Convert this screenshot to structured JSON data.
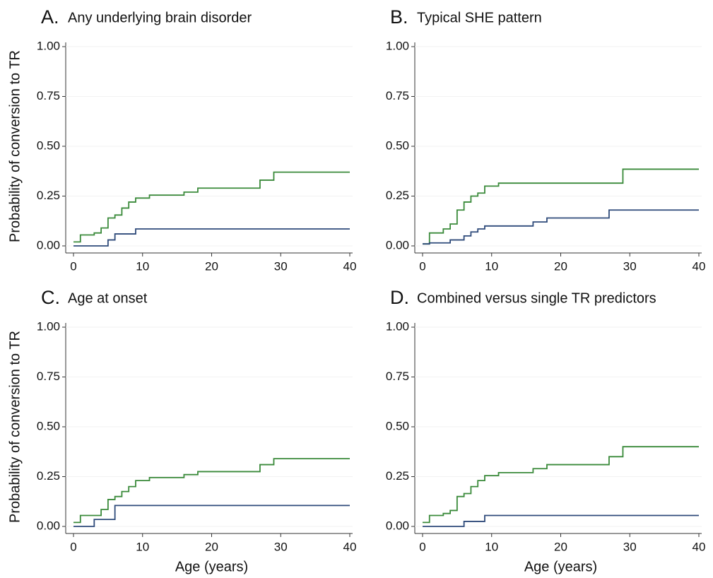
{
  "chart_data": [
    {
      "type": "step",
      "label": "A.",
      "title": "Any underlying brain disorder",
      "ylabel": "Probability of conversion to TR",
      "xlim": [
        0,
        40
      ],
      "ylim": [
        0,
        1
      ],
      "xticks": [
        0,
        10,
        20,
        30,
        40
      ],
      "yticks": [
        {
          "value": 0,
          "label": "0.00"
        },
        {
          "value": 0.25,
          "label": "0.25"
        },
        {
          "value": 0.5,
          "label": "0.50"
        },
        {
          "value": 0.75,
          "label": "0.75"
        },
        {
          "value": 1,
          "label": "1.00"
        }
      ],
      "series": [
        {
          "color": "#3a8a3a",
          "x": [
            0,
            1,
            3,
            4,
            5,
            6,
            7,
            8,
            9,
            11,
            16,
            18,
            27,
            29,
            40
          ],
          "values": [
            0.02,
            0.055,
            0.065,
            0.09,
            0.14,
            0.155,
            0.19,
            0.22,
            0.24,
            0.255,
            0.27,
            0.29,
            0.33,
            0.37,
            0.37
          ]
        },
        {
          "color": "#2e4a7a",
          "x": [
            0,
            5,
            6,
            9,
            40
          ],
          "values": [
            0,
            0.03,
            0.06,
            0.085,
            0.085
          ]
        }
      ]
    },
    {
      "type": "step",
      "label": "B.",
      "title": "Typical SHE pattern",
      "xlim": [
        0,
        40
      ],
      "ylim": [
        0,
        1
      ],
      "xticks": [
        0,
        10,
        20,
        30,
        40
      ],
      "yticks": [
        {
          "value": 0,
          "label": "0.00"
        },
        {
          "value": 0.25,
          "label": "0.25"
        },
        {
          "value": 0.5,
          "label": "0.50"
        },
        {
          "value": 0.75,
          "label": "0.75"
        },
        {
          "value": 1,
          "label": "1.00"
        }
      ],
      "series": [
        {
          "color": "#3a8a3a",
          "x": [
            0,
            1,
            3,
            4,
            5,
            6,
            7,
            8,
            9,
            11,
            29,
            40
          ],
          "values": [
            0.01,
            0.065,
            0.085,
            0.11,
            0.18,
            0.22,
            0.25,
            0.265,
            0.3,
            0.315,
            0.385,
            0.385
          ]
        },
        {
          "color": "#2e4a7a",
          "x": [
            0,
            1,
            4,
            6,
            7,
            8,
            9,
            16,
            18,
            27,
            40
          ],
          "values": [
            0.01,
            0.015,
            0.03,
            0.05,
            0.07,
            0.085,
            0.1,
            0.12,
            0.14,
            0.18,
            0.18
          ]
        }
      ]
    },
    {
      "type": "step",
      "label": "C.",
      "title": "Age at onset",
      "ylabel": "Probability of conversion to TR",
      "xlabel": "Age (years)",
      "xlim": [
        0,
        40
      ],
      "ylim": [
        0,
        1
      ],
      "xticks": [
        0,
        10,
        20,
        30,
        40
      ],
      "yticks": [
        {
          "value": 0,
          "label": "0.00"
        },
        {
          "value": 0.25,
          "label": "0.25"
        },
        {
          "value": 0.5,
          "label": "0.50"
        },
        {
          "value": 0.75,
          "label": "0.75"
        },
        {
          "value": 1,
          "label": "1.00"
        }
      ],
      "series": [
        {
          "color": "#3a8a3a",
          "x": [
            0,
            1,
            4,
            5,
            6,
            7,
            8,
            9,
            11,
            16,
            18,
            27,
            29,
            40
          ],
          "values": [
            0.02,
            0.055,
            0.085,
            0.135,
            0.15,
            0.175,
            0.2,
            0.23,
            0.245,
            0.26,
            0.275,
            0.31,
            0.34,
            0.34
          ]
        },
        {
          "color": "#2e4a7a",
          "x": [
            0,
            3,
            6,
            40
          ],
          "values": [
            0,
            0.035,
            0.105,
            0.105
          ]
        }
      ]
    },
    {
      "type": "step",
      "label": "D.",
      "title": "Combined versus single TR predictors",
      "xlabel": "Age (years)",
      "xlim": [
        0,
        40
      ],
      "ylim": [
        0,
        1
      ],
      "xticks": [
        0,
        10,
        20,
        30,
        40
      ],
      "yticks": [
        {
          "value": 0,
          "label": "0.00"
        },
        {
          "value": 0.25,
          "label": "0.25"
        },
        {
          "value": 0.5,
          "label": "0.50"
        },
        {
          "value": 0.75,
          "label": "0.75"
        },
        {
          "value": 1,
          "label": "1.00"
        }
      ],
      "series": [
        {
          "color": "#3a8a3a",
          "x": [
            0,
            1,
            3,
            4,
            5,
            6,
            7,
            8,
            9,
            11,
            16,
            18,
            27,
            29,
            40
          ],
          "values": [
            0.02,
            0.055,
            0.065,
            0.08,
            0.15,
            0.165,
            0.2,
            0.23,
            0.255,
            0.27,
            0.29,
            0.31,
            0.35,
            0.4,
            0.4
          ]
        },
        {
          "color": "#2e4a7a",
          "x": [
            0,
            6,
            9,
            40
          ],
          "values": [
            0,
            0.025,
            0.055,
            0.055
          ]
        }
      ]
    }
  ]
}
